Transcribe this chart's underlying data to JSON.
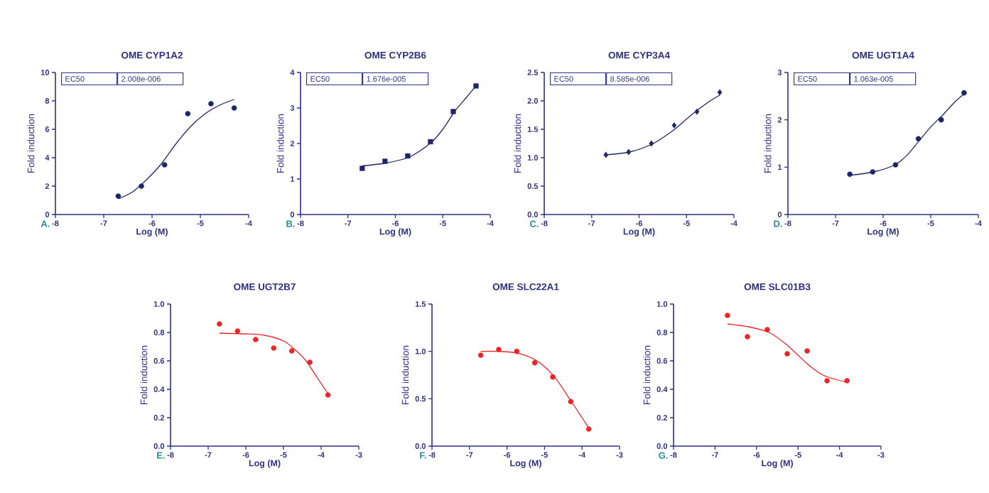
{
  "chart_data": [
    {
      "type": "scatter",
      "title": "OME CYP1A2",
      "xlabel": "Log (M)",
      "ylabel": "Fold induction",
      "annotations": [
        "A.",
        "EC50",
        "2.008e-006"
      ],
      "xlim": [
        -8,
        -4
      ],
      "xticks": [
        -8,
        -7,
        -6,
        -5,
        -4
      ],
      "ylim": [
        0,
        10
      ],
      "yticks": [
        0,
        2,
        4,
        6,
        8,
        10
      ],
      "grid": false,
      "series": [
        {
          "type": "scatter",
          "marker": "circle",
          "color": "#1f2566",
          "x": [
            -6.7,
            -6.22,
            -5.74,
            -5.26,
            -4.78,
            -4.3
          ],
          "values": [
            1.3,
            2.0,
            3.5,
            7.1,
            7.8,
            7.5
          ]
        },
        {
          "type": "line",
          "marker": "none",
          "line_style": "solid",
          "color": "#1f2566",
          "x": [
            -6.7,
            -6.4,
            -6.1,
            -5.8,
            -5.5,
            -5.2,
            -4.9,
            -4.6,
            -4.3
          ],
          "values": [
            1.1,
            1.6,
            2.5,
            3.6,
            5.0,
            6.2,
            7.1,
            7.7,
            8.1
          ]
        }
      ]
    },
    {
      "type": "scatter",
      "title": "OME CYP2B6",
      "xlabel": "Log (M)",
      "ylabel": "Fold induction",
      "annotations": [
        "B.",
        "EC50",
        "1.676e-005"
      ],
      "xlim": [
        -8,
        -4
      ],
      "xticks": [
        -8,
        -7,
        -6,
        -5,
        -4
      ],
      "ylim": [
        0,
        4
      ],
      "yticks": [
        0,
        1,
        2,
        3,
        4
      ],
      "grid": false,
      "series": [
        {
          "type": "scatter",
          "marker": "square",
          "color": "#1f2566",
          "x": [
            -6.7,
            -6.22,
            -5.74,
            -5.26,
            -4.78,
            -4.3
          ],
          "values": [
            1.3,
            1.5,
            1.65,
            2.05,
            2.9,
            3.62
          ]
        },
        {
          "type": "line",
          "marker": "none",
          "line_style": "solid",
          "color": "#1f2566",
          "x": [
            -6.7,
            -6.2,
            -5.7,
            -5.25,
            -5.0,
            -4.75,
            -4.5,
            -4.3
          ],
          "values": [
            1.37,
            1.45,
            1.62,
            2.02,
            2.4,
            2.9,
            3.3,
            3.62
          ]
        }
      ]
    },
    {
      "type": "scatter",
      "title": "OME CYP3A4",
      "xlabel": "Log (M)",
      "ylabel": "Fold induction",
      "annotations": [
        "C.",
        "EC50",
        "8.585e-006"
      ],
      "xlim": [
        -8,
        -4
      ],
      "xticks": [
        -8,
        -7,
        -6,
        -5,
        -4
      ],
      "ylim": [
        0,
        2.5
      ],
      "yticks": [
        {
          "value": 0,
          "label": "0.0"
        },
        0.5,
        {
          "value": 1,
          "label": "1.0"
        },
        1.5,
        {
          "value": 2,
          "label": "2.0"
        },
        2.5
      ],
      "grid": false,
      "series": [
        {
          "type": "scatter",
          "marker": "diamond",
          "color": "#1f2566",
          "x": [
            -6.7,
            -6.22,
            -5.74,
            -5.26,
            -4.78,
            -4.3
          ],
          "values": [
            1.05,
            1.1,
            1.25,
            1.57,
            1.81,
            2.15
          ]
        },
        {
          "type": "line",
          "marker": "none",
          "line_style": "solid",
          "color": "#1f2566",
          "x": [
            -6.7,
            -6.2,
            -5.7,
            -5.25,
            -5.0,
            -4.75,
            -4.5,
            -4.3
          ],
          "values": [
            1.05,
            1.1,
            1.25,
            1.5,
            1.68,
            1.85,
            2.0,
            2.1
          ]
        }
      ]
    },
    {
      "type": "scatter",
      "title": "OME UGT1A4",
      "xlabel": "Log (M)",
      "ylabel": "Fold induction",
      "annotations": [
        "D.",
        "EC50",
        "1.063e-005"
      ],
      "xlim": [
        -8,
        -4
      ],
      "xticks": [
        -8,
        -7,
        -6,
        -5,
        -4
      ],
      "ylim": [
        0,
        3
      ],
      "yticks": [
        0,
        1,
        2,
        3
      ],
      "grid": false,
      "series": [
        {
          "type": "scatter",
          "marker": "circle",
          "color": "#1f2566",
          "x": [
            -6.7,
            -6.22,
            -5.74,
            -5.26,
            -4.78,
            -4.3
          ],
          "values": [
            0.85,
            0.9,
            1.05,
            1.6,
            2.0,
            2.57
          ]
        },
        {
          "type": "line",
          "marker": "none",
          "line_style": "solid",
          "color": "#1f2566",
          "x": [
            -6.7,
            -6.2,
            -5.75,
            -5.5,
            -5.25,
            -5.0,
            -4.75,
            -4.5,
            -4.3
          ],
          "values": [
            0.83,
            0.9,
            1.05,
            1.25,
            1.55,
            1.85,
            2.1,
            2.37,
            2.55
          ]
        }
      ]
    },
    {
      "type": "scatter",
      "title": "OME UGT2B7",
      "xlabel": "Log (M)",
      "ylabel": "Fold induction",
      "annotations": [
        "E."
      ],
      "xlim": [
        -8,
        -3
      ],
      "xticks": [
        -8,
        -7,
        -6,
        -5,
        -4,
        -3
      ],
      "ylim": [
        0,
        1
      ],
      "yticks": [
        {
          "value": 0,
          "label": "0.0"
        },
        0.2,
        0.4,
        0.6,
        0.8,
        {
          "value": 1,
          "label": "1.0"
        }
      ],
      "grid": false,
      "series": [
        {
          "type": "scatter",
          "marker": "circle",
          "color": "#e8262a",
          "x": [
            -6.7,
            -6.22,
            -5.74,
            -5.26,
            -4.78,
            -4.3,
            -3.82
          ],
          "values": [
            0.86,
            0.81,
            0.75,
            0.69,
            0.67,
            0.59,
            0.36
          ]
        },
        {
          "type": "line",
          "marker": "none",
          "line_style": "solid",
          "color": "#e8262a",
          "x": [
            -6.7,
            -6.0,
            -5.5,
            -5.0,
            -4.7,
            -4.4,
            -4.1,
            -3.82
          ],
          "values": [
            0.795,
            0.79,
            0.78,
            0.74,
            0.68,
            0.6,
            0.48,
            0.37
          ]
        }
      ]
    },
    {
      "type": "scatter",
      "title": "OME SLC22A1",
      "xlabel": "Log (M)",
      "ylabel": "Fold induction",
      "annotations": [
        "F."
      ],
      "xlim": [
        -8,
        -3
      ],
      "xticks": [
        -8,
        -7,
        -6,
        -5,
        -4,
        -3
      ],
      "ylim": [
        0,
        1.5
      ],
      "yticks": [
        {
          "value": 0,
          "label": "0.0"
        },
        0.5,
        {
          "value": 1,
          "label": "1.0"
        },
        1.5
      ],
      "grid": false,
      "series": [
        {
          "type": "scatter",
          "marker": "circle",
          "color": "#e8262a",
          "x": [
            -6.7,
            -6.22,
            -5.74,
            -5.26,
            -4.78,
            -4.3,
            -3.82
          ],
          "values": [
            0.96,
            1.02,
            1.0,
            0.88,
            0.73,
            0.47,
            0.18
          ]
        },
        {
          "type": "line",
          "marker": "none",
          "line_style": "solid",
          "color": "#e8262a",
          "x": [
            -6.7,
            -6.2,
            -5.7,
            -5.2,
            -4.75,
            -4.3,
            -4.0,
            -3.82
          ],
          "values": [
            1.0,
            1.0,
            0.98,
            0.9,
            0.74,
            0.48,
            0.3,
            0.19
          ]
        }
      ]
    },
    {
      "type": "scatter",
      "title": "OME SLC01B3",
      "xlabel": "Log (M)",
      "ylabel": "Fold induction",
      "annotations": [
        "G."
      ],
      "xlim": [
        -8,
        -3
      ],
      "xticks": [
        -8,
        -7,
        -6,
        -5,
        -4,
        -3
      ],
      "ylim": [
        0,
        1
      ],
      "yticks": [
        {
          "value": 0,
          "label": "0.0"
        },
        0.2,
        0.4,
        0.6,
        0.8,
        {
          "value": 1,
          "label": "1.0"
        }
      ],
      "grid": false,
      "series": [
        {
          "type": "scatter",
          "marker": "circle",
          "color": "#e8262a",
          "x": [
            -6.7,
            -6.22,
            -5.74,
            -5.26,
            -4.78,
            -4.3,
            -3.82
          ],
          "values": [
            0.92,
            0.77,
            0.82,
            0.65,
            0.67,
            0.46,
            0.46
          ]
        },
        {
          "type": "line",
          "marker": "none",
          "line_style": "solid",
          "color": "#e8262a",
          "x": [
            -6.7,
            -6.2,
            -5.7,
            -5.3,
            -5.0,
            -4.7,
            -4.4,
            -4.1,
            -3.82
          ],
          "values": [
            0.86,
            0.84,
            0.8,
            0.72,
            0.64,
            0.56,
            0.5,
            0.47,
            0.45
          ]
        }
      ]
    }
  ]
}
